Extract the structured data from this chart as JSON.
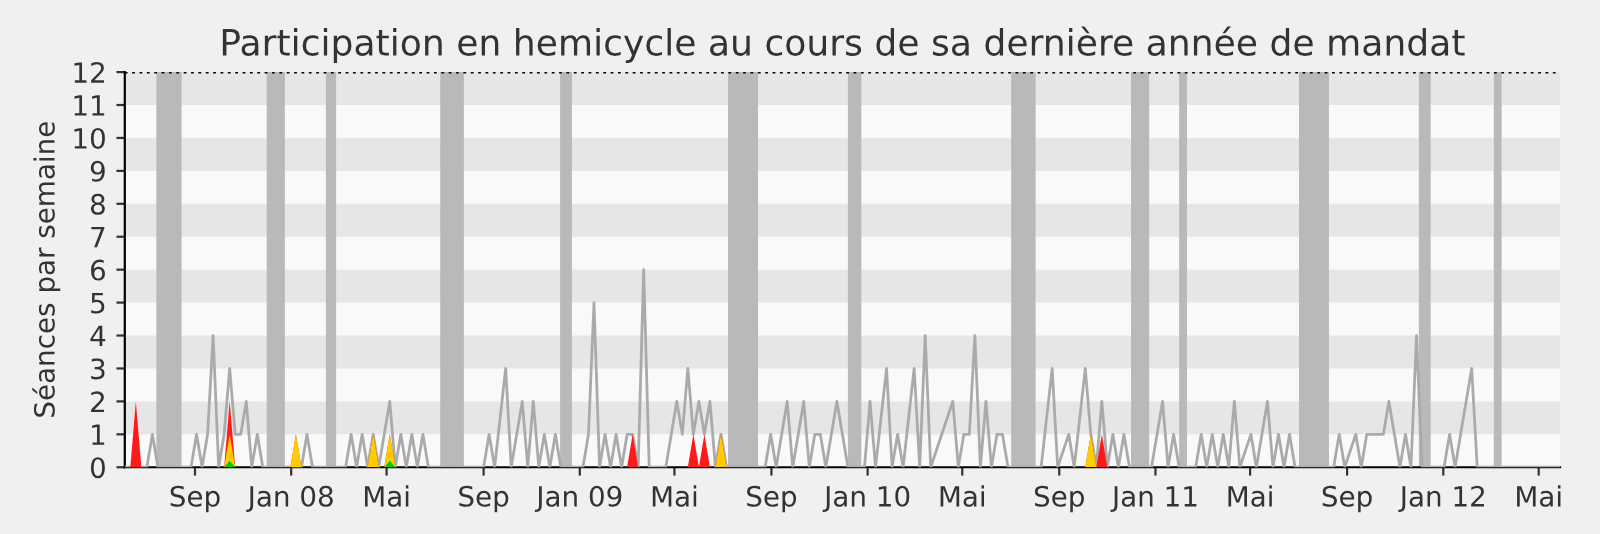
{
  "chart_data": {
    "type": "line",
    "title": "Participation en hemicycle au cours de sa dernière année de mandat",
    "ylabel": "Séances par semaine",
    "xlim": [
      "2007-06-04",
      "2012-05-28"
    ],
    "ylim": [
      0,
      12
    ],
    "yticks": [
      0,
      1,
      2,
      3,
      4,
      5,
      6,
      7,
      8,
      9,
      10,
      11,
      12
    ],
    "xticks": [
      {
        "value": "2007-09-01",
        "label": "Sep"
      },
      {
        "value": "2008-01-01",
        "label": "Jan 08"
      },
      {
        "value": "2008-05-01",
        "label": "Mai"
      },
      {
        "value": "2008-09-01",
        "label": "Sep"
      },
      {
        "value": "2009-01-01",
        "label": "Jan 09"
      },
      {
        "value": "2009-05-01",
        "label": "Mai"
      },
      {
        "value": "2009-09-01",
        "label": "Sep"
      },
      {
        "value": "2010-01-01",
        "label": "Jan 10"
      },
      {
        "value": "2010-05-01",
        "label": "Mai"
      },
      {
        "value": "2010-09-01",
        "label": "Sep"
      },
      {
        "value": "2011-01-01",
        "label": "Jan 11"
      },
      {
        "value": "2011-05-01",
        "label": "Mai"
      },
      {
        "value": "2011-09-01",
        "label": "Sep"
      },
      {
        "value": "2012-01-01",
        "label": "Jan 12"
      },
      {
        "value": "2012-05-01",
        "label": "Mai"
      }
    ],
    "grid": false,
    "legend": false,
    "marker": "none",
    "line_style": "solid",
    "bands": [
      {
        "axis": "y",
        "from": 1,
        "to": 2,
        "color": "#e6e6e6"
      },
      {
        "axis": "y",
        "from": 3,
        "to": 4,
        "color": "#e6e6e6"
      },
      {
        "axis": "y",
        "from": 5,
        "to": 6,
        "color": "#e6e6e6"
      },
      {
        "axis": "y",
        "from": 7,
        "to": 8,
        "color": "#e6e6e6"
      },
      {
        "axis": "y",
        "from": 9,
        "to": 10,
        "color": "#e6e6e6"
      },
      {
        "axis": "y",
        "from": 11,
        "to": 12,
        "color": "#e6e6e6"
      },
      {
        "axis": "x",
        "from": "2007-07-14",
        "to": "2007-08-15",
        "color": "#b9b9b9"
      },
      {
        "axis": "x",
        "from": "2007-12-01",
        "to": "2007-12-24",
        "color": "#b9b9b9"
      },
      {
        "axis": "x",
        "from": "2008-02-14",
        "to": "2008-02-27",
        "color": "#b9b9b9"
      },
      {
        "axis": "x",
        "from": "2008-07-08",
        "to": "2008-08-07",
        "color": "#b9b9b9"
      },
      {
        "axis": "x",
        "from": "2008-12-07",
        "to": "2008-12-22",
        "color": "#b9b9b9"
      },
      {
        "axis": "x",
        "from": "2009-07-08",
        "to": "2009-08-15",
        "color": "#b9b9b9"
      },
      {
        "axis": "x",
        "from": "2009-12-07",
        "to": "2009-12-24",
        "color": "#b9b9b9"
      },
      {
        "axis": "x",
        "from": "2010-07-02",
        "to": "2010-08-02",
        "color": "#b9b9b9"
      },
      {
        "axis": "x",
        "from": "2010-12-01",
        "to": "2010-12-24",
        "color": "#b9b9b9"
      },
      {
        "axis": "x",
        "from": "2011-01-31",
        "to": "2011-02-10",
        "color": "#b9b9b9"
      },
      {
        "axis": "x",
        "from": "2011-07-02",
        "to": "2011-08-09",
        "color": "#b9b9b9"
      },
      {
        "axis": "x",
        "from": "2011-12-01",
        "to": "2011-12-16",
        "color": "#b9b9b9"
      },
      {
        "axis": "x",
        "from": "2012-03-05",
        "to": "2012-03-15",
        "color": "#b9b9b9"
      }
    ],
    "ref_lines": [
      {
        "axis": "y",
        "value": 12,
        "color": "#000000",
        "line_style": "dotted"
      }
    ],
    "series": [
      {
        "color": "#aaaaaa",
        "x": [
          "2007-06-04",
          "2007-07-02",
          "2007-07-09",
          "2007-07-16",
          "2007-08-27",
          "2007-09-03",
          "2007-09-10",
          "2007-09-17",
          "2007-09-24",
          "2007-10-01",
          "2007-10-08",
          "2007-10-15",
          "2007-10-22",
          "2007-10-29",
          "2007-11-05",
          "2007-11-12",
          "2007-11-19",
          "2007-11-26",
          "2008-01-14",
          "2008-01-21",
          "2008-01-28",
          "2008-03-10",
          "2008-03-17",
          "2008-03-24",
          "2008-03-31",
          "2008-04-07",
          "2008-04-14",
          "2008-04-21",
          "2008-05-05",
          "2008-05-12",
          "2008-05-19",
          "2008-05-26",
          "2008-06-02",
          "2008-06-09",
          "2008-06-16",
          "2008-06-23",
          "2008-09-01",
          "2008-09-08",
          "2008-09-15",
          "2008-09-29",
          "2008-10-06",
          "2008-10-20",
          "2008-10-27",
          "2008-11-03",
          "2008-11-10",
          "2008-11-17",
          "2008-11-24",
          "2008-12-01",
          "2008-12-08",
          "2009-01-05",
          "2009-01-12",
          "2009-01-19",
          "2009-01-26",
          "2009-02-02",
          "2009-02-09",
          "2009-02-16",
          "2009-02-23",
          "2009-03-02",
          "2009-03-09",
          "2009-03-16",
          "2009-03-23",
          "2009-03-30",
          "2009-04-20",
          "2009-05-04",
          "2009-05-11",
          "2009-05-18",
          "2009-05-25",
          "2009-06-01",
          "2009-06-08",
          "2009-06-15",
          "2009-06-22",
          "2009-06-29",
          "2009-07-06",
          "2009-08-24",
          "2009-08-31",
          "2009-09-07",
          "2009-09-21",
          "2009-09-28",
          "2009-10-12",
          "2009-10-19",
          "2009-10-26",
          "2009-11-02",
          "2009-11-09",
          "2009-11-23",
          "2009-11-30",
          "2009-12-07",
          "2009-12-28",
          "2010-01-04",
          "2010-01-11",
          "2010-01-25",
          "2010-02-01",
          "2010-02-08",
          "2010-02-15",
          "2010-03-01",
          "2010-03-08",
          "2010-03-15",
          "2010-03-22",
          "2010-04-19",
          "2010-04-26",
          "2010-05-03",
          "2010-05-10",
          "2010-05-17",
          "2010-05-24",
          "2010-05-31",
          "2010-06-07",
          "2010-06-14",
          "2010-06-21",
          "2010-06-28",
          "2010-08-09",
          "2010-08-23",
          "2010-08-30",
          "2010-09-13",
          "2010-09-20",
          "2010-10-04",
          "2010-10-11",
          "2010-10-18",
          "2010-10-25",
          "2010-11-01",
          "2010-11-08",
          "2010-11-15",
          "2010-11-22",
          "2010-11-29",
          "2010-12-27",
          "2011-01-10",
          "2011-01-17",
          "2011-01-24",
          "2011-01-31",
          "2011-02-21",
          "2011-02-28",
          "2011-03-07",
          "2011-03-14",
          "2011-03-21",
          "2011-03-28",
          "2011-04-04",
          "2011-04-11",
          "2011-04-18",
          "2011-05-02",
          "2011-05-09",
          "2011-05-23",
          "2011-05-30",
          "2011-06-06",
          "2011-06-13",
          "2011-06-20",
          "2011-06-27",
          "2011-08-15",
          "2011-08-22",
          "2011-08-29",
          "2011-09-12",
          "2011-09-19",
          "2011-09-26",
          "2011-10-03",
          "2011-10-10",
          "2011-10-17",
          "2011-10-24",
          "2011-10-31",
          "2011-11-07",
          "2011-11-14",
          "2011-11-21",
          "2011-11-28",
          "2011-12-05",
          "2012-01-02",
          "2012-01-09",
          "2012-01-16",
          "2012-01-23",
          "2012-01-30",
          "2012-02-06",
          "2012-02-13",
          "2012-05-28"
        ],
        "values": [
          0,
          0,
          1,
          0,
          0,
          1,
          0,
          1,
          4,
          0,
          1,
          3,
          1,
          1,
          2,
          0,
          1,
          0,
          0,
          1,
          0,
          0,
          1,
          0,
          1,
          0,
          1,
          0,
          2,
          0,
          1,
          0,
          1,
          0,
          1,
          0,
          0,
          1,
          0,
          3,
          0,
          2,
          0,
          2,
          0,
          1,
          0,
          1,
          0,
          0,
          1,
          5,
          0,
          1,
          0,
          1,
          0,
          1,
          1,
          0,
          6,
          0,
          0,
          2,
          1,
          3,
          1,
          2,
          1,
          2,
          0,
          1,
          0,
          0,
          1,
          0,
          2,
          0,
          2,
          0,
          1,
          1,
          0,
          2,
          1,
          0,
          0,
          2,
          0,
          3,
          0,
          1,
          0,
          3,
          0,
          4,
          0,
          2,
          0,
          1,
          1,
          4,
          0,
          2,
          0,
          1,
          1,
          0,
          0,
          3,
          0,
          1,
          0,
          3,
          1,
          0,
          2,
          0,
          1,
          0,
          1,
          0,
          0,
          2,
          0,
          1,
          0,
          0,
          1,
          0,
          1,
          0,
          1,
          0,
          2,
          0,
          1,
          0,
          2,
          0,
          1,
          0,
          1,
          0,
          0,
          1,
          0,
          1,
          0,
          1,
          1,
          1,
          1,
          2,
          1,
          0,
          1,
          0,
          4,
          0,
          0,
          1,
          0,
          1,
          2,
          3,
          0,
          0
        ]
      },
      {
        "type": "area",
        "color": "#ff1a1a",
        "x": [
          "2007-06-11",
          "2007-06-18",
          "2007-06-25",
          "2007-10-08",
          "2007-10-15",
          "2007-10-22",
          "2007-12-31",
          "2008-01-07",
          "2008-01-14",
          "2008-04-07",
          "2008-04-14",
          "2008-04-21",
          "2008-04-28",
          "2008-05-05",
          "2008-05-12",
          "2009-03-02",
          "2009-03-09",
          "2009-03-16",
          "2009-05-18",
          "2009-05-25",
          "2009-06-01",
          "2009-06-08",
          "2009-06-15",
          "2009-06-22",
          "2009-06-29",
          "2009-07-06",
          "2010-10-04",
          "2010-10-11",
          "2010-10-18",
          "2010-10-25",
          "2010-11-01"
        ],
        "values": [
          0,
          2,
          0,
          0,
          2,
          0,
          0,
          1,
          0,
          0,
          1,
          0,
          0,
          1,
          0,
          0,
          1,
          0,
          0,
          1,
          0,
          1,
          0,
          0,
          1,
          0,
          0,
          1,
          0,
          1,
          0
        ]
      },
      {
        "type": "area",
        "color": "#ffcc00",
        "x": [
          "2007-10-08",
          "2007-10-15",
          "2007-10-22",
          "2007-12-31",
          "2008-01-07",
          "2008-01-14",
          "2008-04-07",
          "2008-04-14",
          "2008-04-21",
          "2008-04-28",
          "2008-05-05",
          "2008-05-12",
          "2009-06-22",
          "2009-06-29",
          "2009-07-06",
          "2010-10-04",
          "2010-10-11",
          "2010-10-18"
        ],
        "values": [
          0,
          1,
          0,
          0,
          1,
          0,
          0,
          1,
          0,
          0,
          1,
          0,
          0,
          1,
          0,
          0,
          1,
          0
        ]
      },
      {
        "type": "area",
        "color": "#00cc00",
        "x": [
          "2007-10-08",
          "2007-10-15",
          "2007-10-22",
          "2008-04-28",
          "2008-05-05",
          "2008-05-12"
        ],
        "values": [
          0,
          0.2,
          0,
          0,
          0.2,
          0
        ]
      }
    ]
  }
}
